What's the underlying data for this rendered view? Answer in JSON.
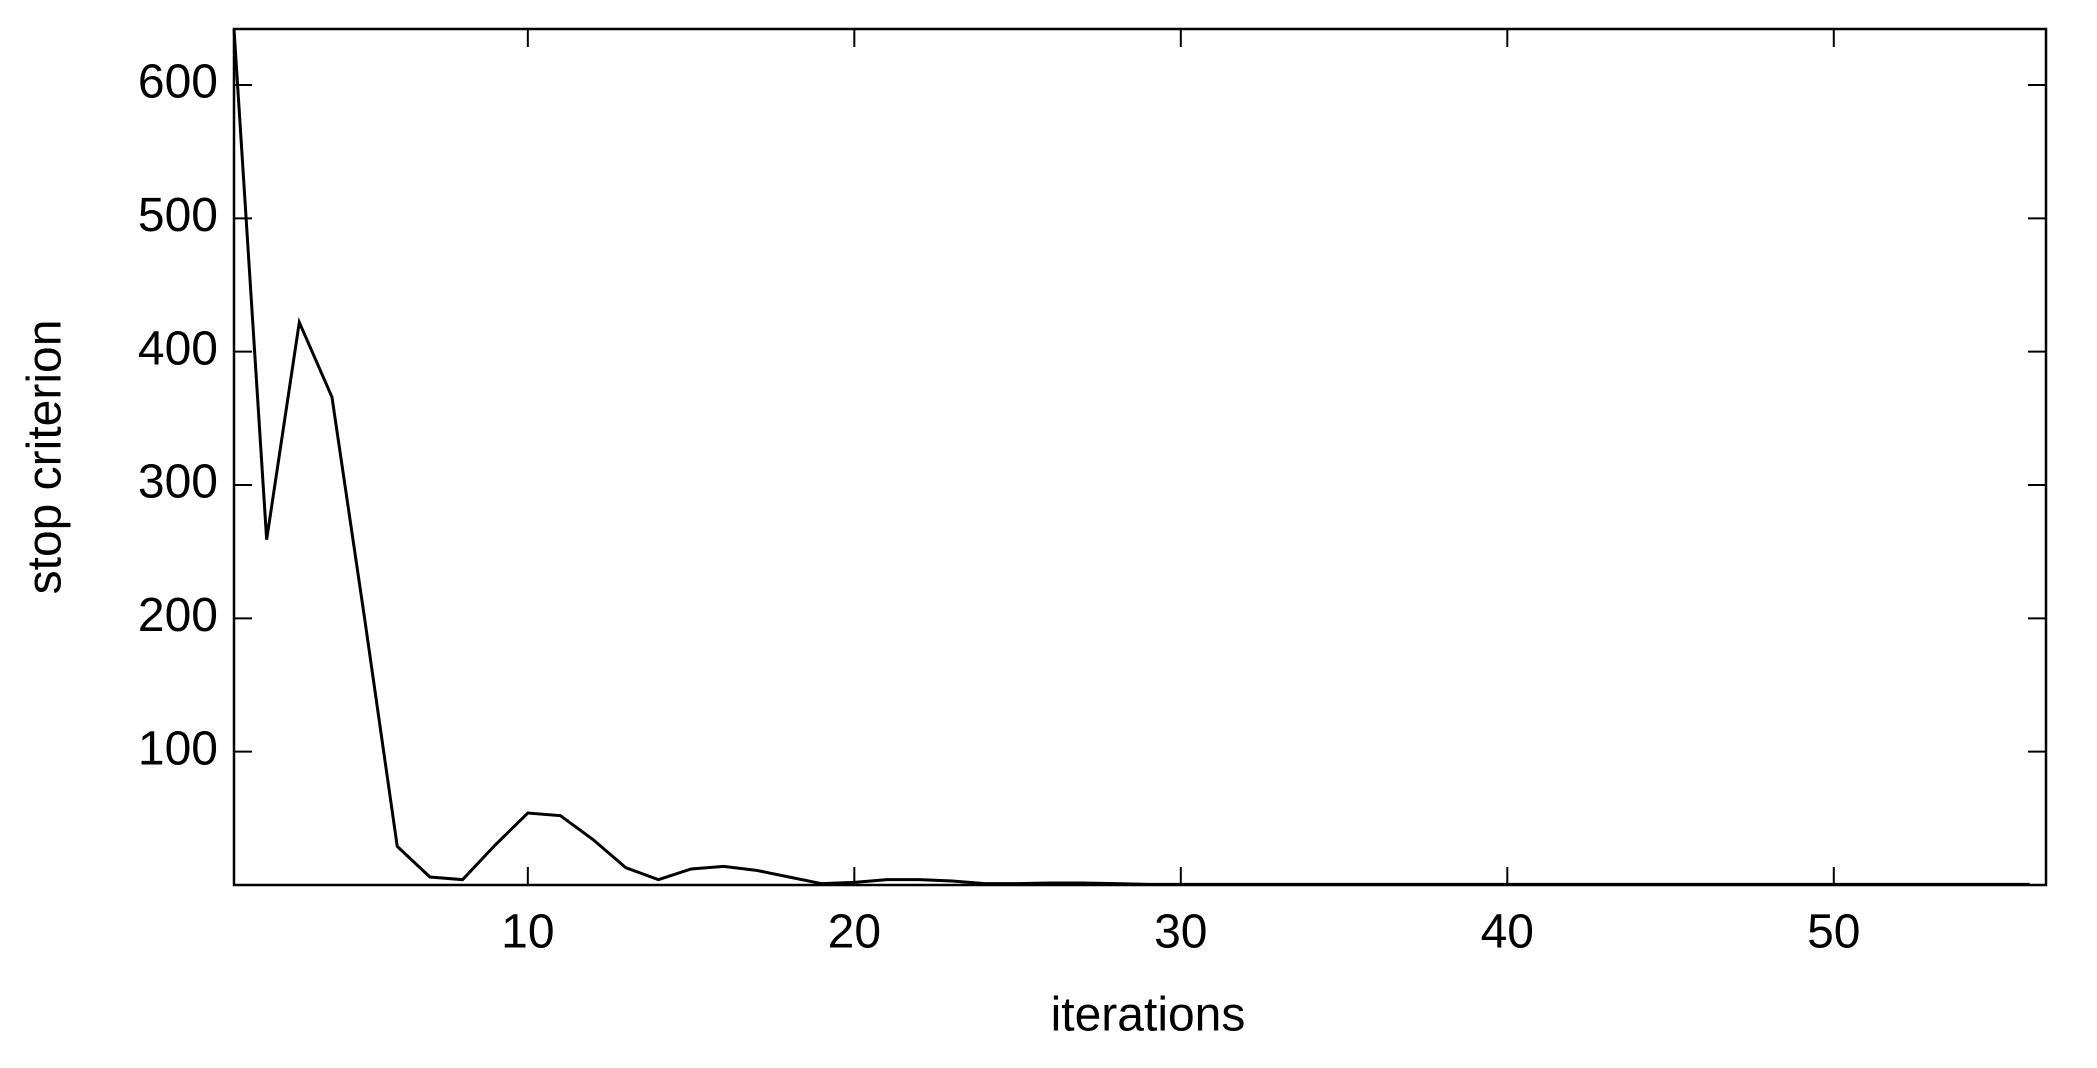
{
  "chart_data": {
    "type": "line",
    "x_label": "iterations",
    "y_label": "stop criterion",
    "x": [
      1,
      2,
      3,
      4,
      5,
      6,
      7,
      8,
      9,
      10,
      11,
      12,
      13,
      14,
      15,
      16,
      17,
      18,
      19,
      20,
      21,
      22,
      23,
      24,
      25,
      26,
      27,
      28,
      29,
      30,
      31,
      32,
      33,
      34,
      35,
      36,
      37,
      38,
      39,
      40,
      41,
      42,
      43,
      44,
      45,
      46,
      47,
      48,
      49,
      50,
      51,
      52,
      53,
      54,
      55,
      56
    ],
    "series": [
      {
        "name": "stop criterion",
        "color": "#000000",
        "values": [
          642,
          259,
          422,
          366,
          200,
          29,
          6,
          4,
          30,
          54,
          52,
          34,
          13,
          4,
          12,
          14,
          11,
          6,
          1,
          2,
          4,
          4,
          3,
          1,
          1,
          1.5,
          1.5,
          1,
          0.5,
          0.5,
          0.5,
          0.5,
          0.5,
          0.5,
          0.5,
          0.5,
          0.5,
          0.5,
          0.5,
          0.5,
          0.5,
          0.5,
          0.5,
          0.5,
          0.5,
          0.5,
          0.5,
          0.5,
          0.5,
          0.5,
          0.5,
          0.5,
          0.5,
          0.5,
          0.5,
          0.5
        ]
      }
    ],
    "xlim": [
      1,
      56.5
    ],
    "ylim": [
      0,
      642
    ],
    "xticks": [
      10,
      20,
      30,
      40,
      50
    ],
    "yticks": [
      100,
      200,
      300,
      400,
      500,
      600
    ]
  }
}
